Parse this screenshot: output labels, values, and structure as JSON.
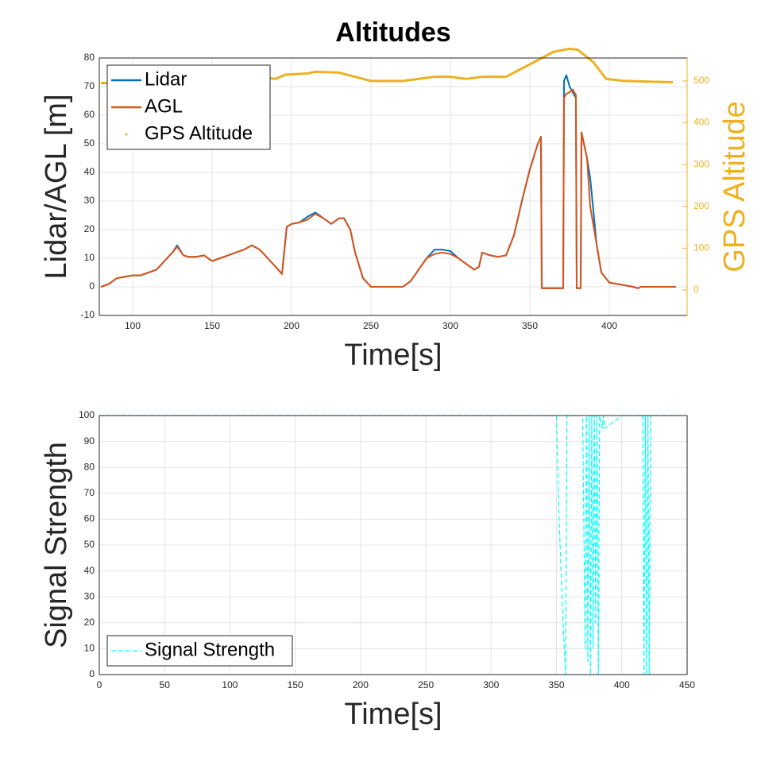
{
  "chart_data": [
    {
      "type": "line",
      "title": "Altitudes",
      "xlabel": "Time[s]",
      "ylabel": "Lidar/AGL [m]",
      "y2label": "GPS Altitude",
      "x": [
        80,
        85,
        90,
        95,
        100,
        105,
        110,
        115,
        120,
        125,
        128,
        132,
        135,
        140,
        145,
        150,
        155,
        160,
        165,
        170,
        175,
        180,
        185,
        190,
        194,
        197,
        200,
        205,
        210,
        215,
        220,
        225,
        230,
        233,
        237,
        240,
        245,
        250,
        260,
        270,
        275,
        280,
        285,
        290,
        295,
        300,
        305,
        310,
        315,
        318,
        320,
        325,
        330,
        335,
        340,
        345,
        350,
        355,
        357,
        357.5,
        371,
        371.5,
        373,
        375,
        377,
        379,
        379.5,
        382,
        382.5,
        386,
        388,
        392,
        395,
        400,
        405,
        410,
        415,
        418,
        420,
        430,
        442
      ],
      "series": [
        {
          "name": "Lidar",
          "color": "#0072BD",
          "values": [
            0,
            1,
            3,
            3.5,
            4,
            4,
            5,
            6,
            9,
            12,
            14.5,
            11,
            10.5,
            10.5,
            11,
            9,
            10,
            11,
            12,
            13,
            14.5,
            13,
            10,
            7,
            4.5,
            21,
            22,
            22.5,
            24.5,
            26,
            24,
            22,
            24,
            24,
            20,
            12,
            3,
            0,
            0,
            0,
            2,
            6,
            10,
            13,
            13,
            12.5,
            10,
            8,
            6,
            7,
            12,
            11,
            10.5,
            11,
            18,
            30,
            41,
            50,
            52.5,
            -0.5,
            -0.5,
            72,
            74,
            70,
            68,
            66,
            -0.5,
            -0.5,
            54,
            45,
            38,
            15,
            5,
            1.5,
            1,
            0.5,
            0,
            -0.5,
            0,
            0,
            0
          ]
        },
        {
          "name": "AGL",
          "color": "#D95319",
          "values": [
            0,
            1,
            3,
            3.5,
            4,
            4,
            5,
            6,
            9,
            12,
            14,
            11,
            10.5,
            10.5,
            11,
            9,
            10,
            11,
            12,
            13,
            14.5,
            13,
            10,
            7,
            4.5,
            21,
            22,
            22.5,
            23.5,
            25.5,
            24,
            22,
            24,
            24,
            20,
            12,
            3,
            0,
            0,
            0,
            2,
            6,
            10,
            11.5,
            12,
            11.5,
            10,
            8,
            6,
            7,
            12,
            11,
            10.5,
            11,
            18,
            30,
            41,
            50,
            52.5,
            -0.5,
            -0.5,
            66,
            67.5,
            68,
            69,
            67,
            -0.5,
            -0.5,
            54,
            45,
            28,
            15,
            5,
            1.5,
            1,
            0.5,
            0,
            -0.5,
            0,
            0,
            0
          ]
        },
        {
          "name": "GPS Altitude",
          "color": "#EDB120",
          "axis": "y2",
          "marker": "dot",
          "x": [
            80,
            100,
            120,
            140,
            160,
            180,
            190,
            196,
            210,
            215,
            230,
            240,
            250,
            270,
            280,
            290,
            300,
            310,
            320,
            335,
            345,
            355,
            365,
            375,
            380,
            390,
            398,
            410,
            440
          ],
          "values": [
            495,
            495,
            505,
            510,
            510,
            510,
            505,
            515,
            518,
            522,
            520,
            510,
            500,
            500,
            505,
            510,
            510,
            505,
            510,
            510,
            530,
            550,
            570,
            577,
            575,
            545,
            505,
            500,
            497
          ]
        }
      ],
      "xlim": [
        79,
        449
      ],
      "xticks": [
        100,
        150,
        200,
        250,
        300,
        350,
        400
      ],
      "ylim": [
        -10,
        80
      ],
      "yticks": [
        -10,
        0,
        10,
        20,
        30,
        40,
        50,
        60,
        70,
        80
      ],
      "y2lim": [
        -61,
        555
      ],
      "y2ticks": [
        0,
        100,
        200,
        300,
        400,
        500
      ],
      "grid": true,
      "legend": "upper left"
    },
    {
      "type": "line",
      "xlabel": "Time[s]",
      "ylabel": "Signal Strength",
      "x": [
        0,
        350,
        352,
        355,
        357,
        358,
        370,
        372,
        373,
        374,
        375,
        376,
        377,
        378,
        379,
        380,
        381,
        382,
        383,
        385,
        386,
        387,
        400,
        416,
        417,
        418,
        419,
        420,
        421,
        422,
        440,
        447
      ],
      "series": [
        {
          "name": "Signal Strength",
          "color": "#00FFFF",
          "dash": "dashed",
          "values": [
            100,
            100,
            60,
            20,
            0,
            100,
            100,
            10,
            100,
            5,
            100,
            0,
            100,
            10,
            100,
            20,
            100,
            0,
            100,
            95,
            100,
            95,
            100,
            100,
            0,
            100,
            0,
            100,
            0,
            100,
            100,
            100
          ]
        }
      ],
      "xlim": [
        0,
        450
      ],
      "xticks": [
        0,
        50,
        100,
        150,
        200,
        250,
        300,
        350,
        400,
        450
      ],
      "ylim": [
        0,
        100
      ],
      "yticks": [
        0,
        10,
        20,
        30,
        40,
        50,
        60,
        70,
        80,
        90,
        100
      ],
      "grid": true,
      "legend": "lower left"
    }
  ]
}
